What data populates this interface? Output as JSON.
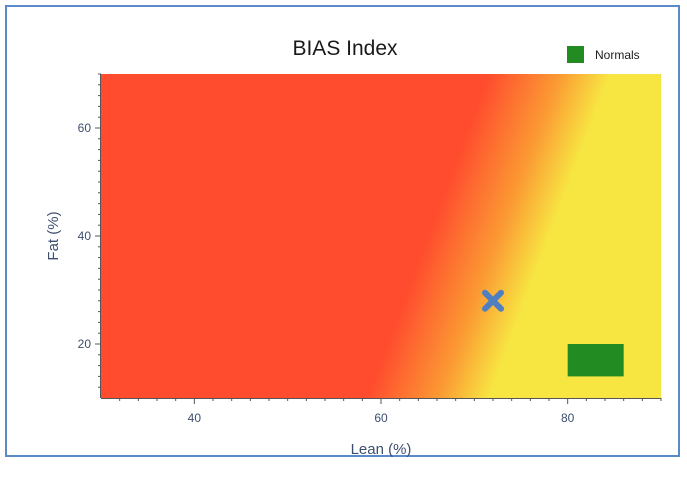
{
  "chart_data": {
    "type": "heatmap",
    "title": "BIAS Index",
    "xlabel": "Lean (%)",
    "ylabel": "Fat (%)",
    "xlim": [
      30,
      90
    ],
    "ylim": [
      10,
      70
    ],
    "x_ticks": [
      40,
      60,
      80
    ],
    "y_ticks": [
      20,
      40,
      60
    ],
    "grid": false,
    "legend": {
      "position": "top-right",
      "entries": [
        {
          "name": "Normals",
          "color": "#228b22"
        }
      ]
    },
    "gradient": {
      "description_colors": [
        "#ff4b2e",
        "#f7e542"
      ],
      "boundary": [
        {
          "x": 62,
          "y": 10
        },
        {
          "x": 75,
          "y": 70
        }
      ]
    },
    "normals_region": {
      "x": [
        80,
        86
      ],
      "y": [
        14,
        20
      ],
      "color": "#228b22"
    },
    "marker": {
      "x": 72,
      "y": 28,
      "shape": "x",
      "color": "#4f7fc0"
    }
  }
}
